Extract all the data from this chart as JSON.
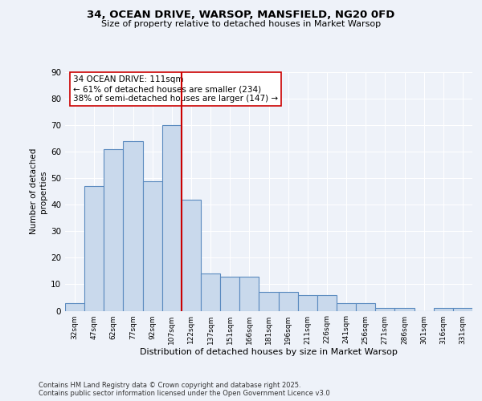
{
  "title1": "34, OCEAN DRIVE, WARSOP, MANSFIELD, NG20 0FD",
  "title2": "Size of property relative to detached houses in Market Warsop",
  "xlabel": "Distribution of detached houses by size in Market Warsop",
  "ylabel": "Number of detached\nproperties",
  "categories": [
    "32sqm",
    "47sqm",
    "62sqm",
    "77sqm",
    "92sqm",
    "107sqm",
    "122sqm",
    "137sqm",
    "151sqm",
    "166sqm",
    "181sqm",
    "196sqm",
    "211sqm",
    "226sqm",
    "241sqm",
    "256sqm",
    "271sqm",
    "286sqm",
    "301sqm",
    "316sqm",
    "331sqm"
  ],
  "values": [
    3,
    47,
    61,
    64,
    49,
    70,
    42,
    14,
    13,
    13,
    7,
    7,
    6,
    6,
    3,
    3,
    1,
    1,
    0,
    1,
    1
  ],
  "bar_color": "#c9d9ec",
  "bar_edge_color": "#5a8abf",
  "vline_x": 5.5,
  "vline_color": "#cc0000",
  "annotation_text": "34 OCEAN DRIVE: 111sqm\n← 61% of detached houses are smaller (234)\n38% of semi-detached houses are larger (147) →",
  "annotation_box_color": "#ffffff",
  "annotation_box_edge": "#cc0000",
  "ylim": [
    0,
    90
  ],
  "yticks": [
    0,
    10,
    20,
    30,
    40,
    50,
    60,
    70,
    80,
    90
  ],
  "footer1": "Contains HM Land Registry data © Crown copyright and database right 2025.",
  "footer2": "Contains public sector information licensed under the Open Government Licence v3.0",
  "bg_color": "#eef2f9",
  "plot_bg_color": "#eef2f9"
}
